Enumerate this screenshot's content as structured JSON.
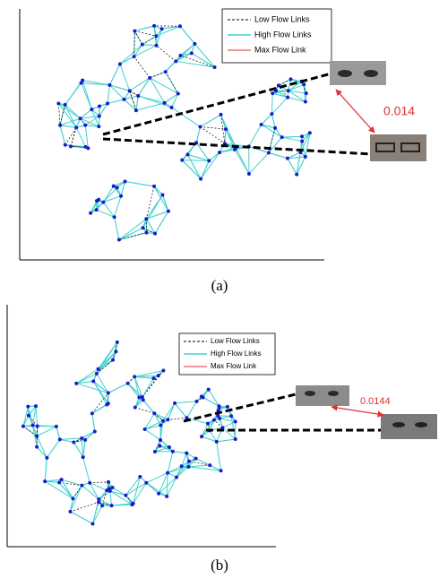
{
  "panels": [
    {
      "legend": [
        "Low Flow Links",
        "High Flow Links",
        "Max Flow Link"
      ],
      "distance": 0.014,
      "caption": "(a)"
    },
    {
      "legend": [
        "Low Flow Links",
        "High Flow Links",
        "Max Flow Link"
      ],
      "distance": 0.0144,
      "caption": "(b)"
    }
  ]
}
